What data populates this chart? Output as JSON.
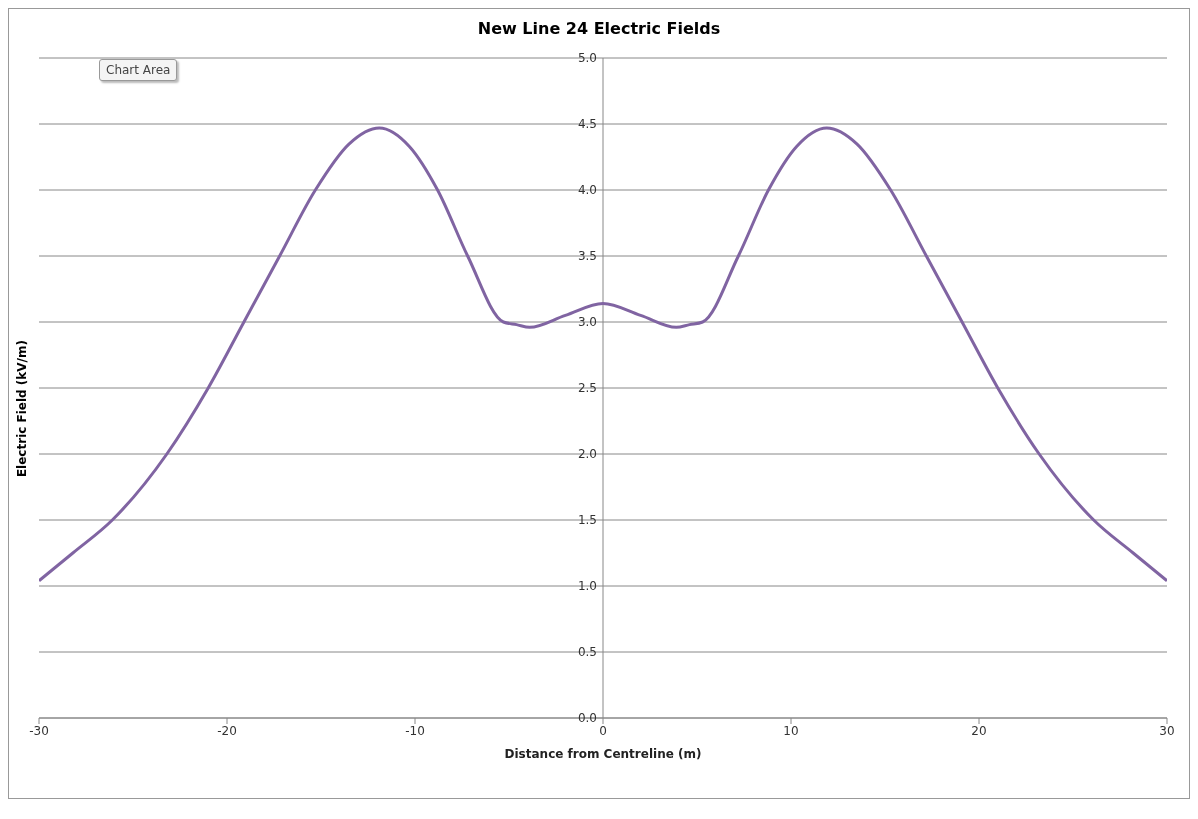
{
  "chart_data": {
    "type": "line",
    "title": "New Line 24 Electric Fields",
    "xlabel": "Distance from Centreline (m)",
    "ylabel": "Electric Field (kV/m)",
    "annotations": [
      "Chart Area"
    ],
    "x": [
      -30,
      -28.2,
      -26.1,
      -23.2,
      -21,
      -19.1,
      -17.2,
      -15.3,
      -13.5,
      -11.9,
      -10.3,
      -8.8,
      -7.2,
      -5.3,
      -4.6,
      -3.9,
      -2,
      0,
      2,
      3.9,
      4.6,
      5.3,
      7.2,
      8.8,
      10.3,
      11.9,
      13.5,
      15.3,
      17.2,
      19.1,
      21,
      23.2,
      26.1,
      28.2,
      30
    ],
    "series": [
      {
        "color": "#8064a2",
        "values": [
          1.04,
          1.25,
          1.5,
          2.0,
          2.5,
          3.0,
          3.5,
          4.0,
          4.35,
          4.47,
          4.33,
          4.0,
          3.5,
          3.0,
          2.98,
          2.96,
          3.05,
          3.14,
          3.05,
          2.96,
          2.98,
          3.0,
          3.5,
          4.0,
          4.33,
          4.47,
          4.35,
          4.0,
          3.5,
          3.0,
          2.5,
          2.0,
          1.5,
          1.25,
          1.04
        ]
      }
    ],
    "xlim": [
      -30,
      30
    ],
    "xticks": [
      -30,
      -20,
      -10,
      0,
      10,
      20,
      30
    ],
    "ylim": [
      0,
      5
    ],
    "yticks": [
      {
        "value": 0,
        "label": "0.0"
      },
      {
        "value": 0.5,
        "label": "0.5"
      },
      {
        "value": 1,
        "label": "1.0"
      },
      {
        "value": 1.5,
        "label": "1.5"
      },
      {
        "value": 2,
        "label": "2.0"
      },
      {
        "value": 2.5,
        "label": "2.5"
      },
      {
        "value": 3,
        "label": "3.0"
      },
      {
        "value": 3.5,
        "label": "3.5"
      },
      {
        "value": 4,
        "label": "4.0"
      },
      {
        "value": 4.5,
        "label": "4.5"
      },
      {
        "value": 5,
        "label": "5.0"
      }
    ],
    "grid": "y",
    "legend": false,
    "marker": "none",
    "line_style": "solid"
  }
}
